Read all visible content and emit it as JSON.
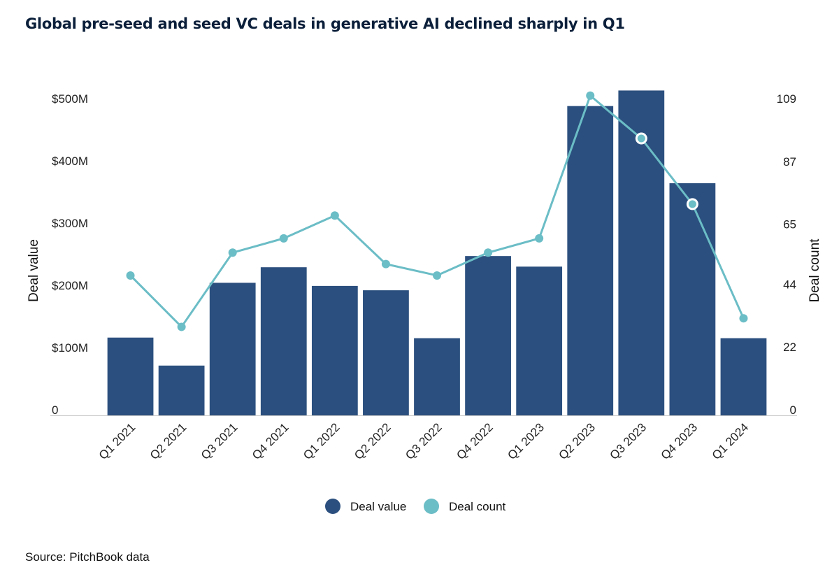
{
  "title": "Global pre-seed and seed VC deals in generative AI declined sharply in Q1",
  "source": "Source: PitchBook data",
  "chart_data": {
    "type": "bar",
    "categories": [
      "Q1 2021",
      "Q2 2021",
      "Q3 2021",
      "Q4 2021",
      "Q1 2022",
      "Q2 2022",
      "Q3 2022",
      "Q4 2022",
      "Q1 2023",
      "Q2 2023",
      "Q3 2023",
      "Q4 2023",
      "Q1 2024"
    ],
    "series": [
      {
        "name": "Deal value",
        "type": "bar",
        "axis": "left",
        "color": "#2b4f7e",
        "values": [
          125,
          80,
          213,
          238,
          208,
          201,
          124,
          256,
          239,
          497,
          522,
          373,
          124
        ]
      },
      {
        "name": "Deal count",
        "type": "line",
        "axis": "right",
        "color": "#6bbdc6",
        "values": [
          49,
          31,
          57,
          62,
          70,
          53,
          49,
          57,
          62,
          112,
          97,
          74,
          34
        ]
      }
    ],
    "ylabel": "Deal value",
    "y2label": "Deal count",
    "y_ticks": [
      "0",
      "$100M",
      "$200M",
      "$300M",
      "$400M",
      "$500M"
    ],
    "y_tick_values": [
      0,
      100,
      200,
      300,
      400,
      500
    ],
    "y2_ticks": [
      "0",
      "22",
      "44",
      "65",
      "87",
      "109"
    ],
    "y2_tick_values": [
      0,
      22,
      44,
      65,
      87,
      109
    ],
    "ylim": [
      0,
      500
    ],
    "y2lim": [
      0,
      109
    ],
    "highlighted_points": [
      10,
      11
    ],
    "legend_position": "bottom-center",
    "grid": false
  }
}
